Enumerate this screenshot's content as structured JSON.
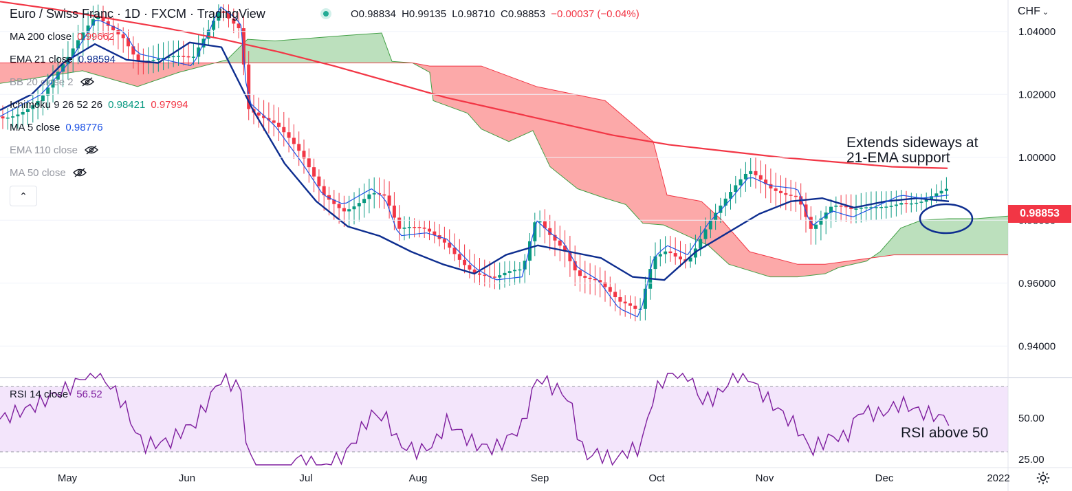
{
  "header": {
    "symbol": "Euro / Swiss Franc · 1D · FXCM · TradingView",
    "ohlc": [
      "O0.98834",
      "H0.99135",
      "L0.98710",
      "C0.98853"
    ],
    "change": "−0.00037 (−0.04%)"
  },
  "indicators": [
    {
      "name": "MA 200 close",
      "value": "0.99662",
      "color": "#f23645",
      "dim": false
    },
    {
      "name": "EMA 21 close",
      "value": "0.98594",
      "color": "#0d2d8f",
      "dim": false
    },
    {
      "name": "BB 20 close 2",
      "value": "",
      "color": "#9598a1",
      "dim": true
    },
    {
      "name": "Ichimoku 9 26 52 26",
      "value": "0.98421",
      "value2": "0.97994",
      "color": "#089981",
      "color2": "#f23645",
      "dim": false
    },
    {
      "name": "MA 5 close",
      "value": "0.98776",
      "color": "#1e53e5",
      "dim": false
    },
    {
      "name": "EMA 110 close",
      "value": "",
      "color": "#9598a1",
      "dim": true
    },
    {
      "name": "MA 50 close",
      "value": "",
      "color": "#9598a1",
      "dim": true
    }
  ],
  "rsi_legend": {
    "name": "RSI 14 close",
    "value": "56.52"
  },
  "currency_label": "CHF",
  "last_price": "0.98853",
  "annotations": {
    "line1": "Extends sideways at",
    "line2": "21-EMA support",
    "rsi_note": "RSI above 50"
  },
  "colors": {
    "up": "#089981",
    "down": "#f23645",
    "ma200": "#f23645",
    "ema21": "#0d2d8f",
    "ma5": "#1e53e5",
    "cloud_bull": "#a5d6a7",
    "cloud_bear": "#fb8c8c",
    "rsi": "#7e1d9e",
    "rsi_bg": "#f3e5fb"
  },
  "chart_data": {
    "type": "candlestick",
    "title": "Euro / Swiss Franc · 1D · FXCM",
    "price_axis": {
      "ticks": [
        "1.04000",
        "1.02000",
        "1.00000",
        "0.98000",
        "0.96000",
        "0.94000"
      ],
      "range": [
        0.93,
        1.05
      ]
    },
    "time_axis": {
      "labels": [
        "May",
        "Jun",
        "Jul",
        "Aug",
        "Sep",
        "Oct",
        "Nov",
        "Dec",
        "2022"
      ]
    },
    "rsi_axis": {
      "ticks": [
        "50.00",
        "25.00"
      ],
      "bands": [
        30,
        70
      ]
    },
    "ma200": [
      1.0495,
      1.047,
      1.044,
      1.041,
      1.0375,
      1.0335,
      1.029,
      1.024,
      1.019,
      1.015,
      1.011,
      1.007,
      1.004,
      1.002,
      1.0,
      0.9985,
      0.997,
      0.9965
    ],
    "ema21": [
      1.015,
      1.02,
      1.03,
      1.036,
      1.031,
      1.03,
      1.0365,
      1.035,
      1.015,
      0.998,
      0.986,
      0.978,
      0.975,
      0.97,
      0.966,
      0.963,
      0.969,
      0.972,
      0.97,
      0.968,
      0.962,
      0.961,
      0.97,
      0.976,
      0.982,
      0.986,
      0.987,
      0.984,
      0.986,
      0.987,
      0.986
    ]
  }
}
